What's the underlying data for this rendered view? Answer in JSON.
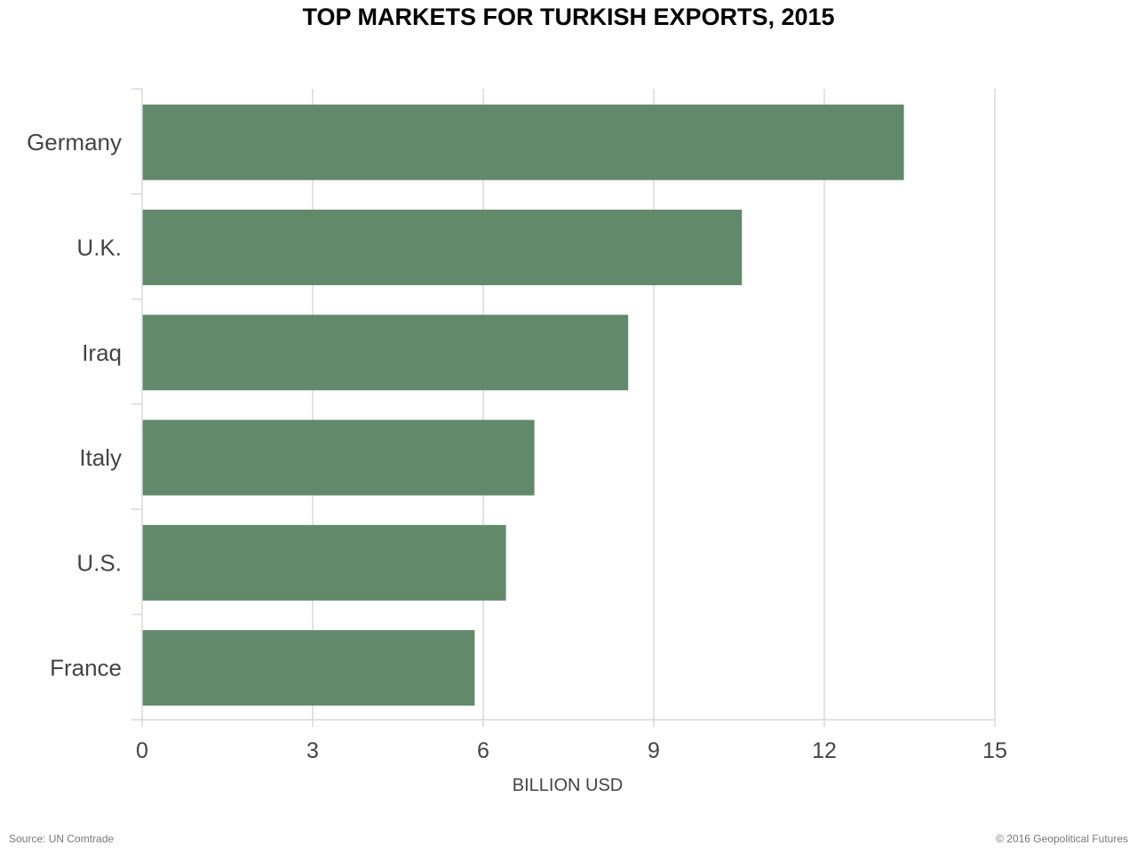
{
  "chart_data": {
    "type": "bar",
    "orientation": "horizontal",
    "title": "TOP MARKETS FOR TURKISH EXPORTS, 2015",
    "categories": [
      "Germany",
      "U.K.",
      "Iraq",
      "Italy",
      "U.S.",
      "France"
    ],
    "values": [
      13.4,
      10.55,
      8.55,
      6.9,
      6.4,
      5.85
    ],
    "xlabel": "BILLION USD",
    "ylabel": "",
    "xlim": [
      0,
      15
    ],
    "xticks": [
      "0",
      "3",
      "6",
      "9",
      "12",
      "15"
    ],
    "grid": "vertical",
    "legend": "none"
  },
  "colors": {
    "bar": "#5e8767",
    "grid": "#d9d9d9",
    "text": "#444444"
  },
  "footer": {
    "source": "Source: UN Comtrade",
    "copyright": "© 2016 Geopolitical Futures"
  }
}
